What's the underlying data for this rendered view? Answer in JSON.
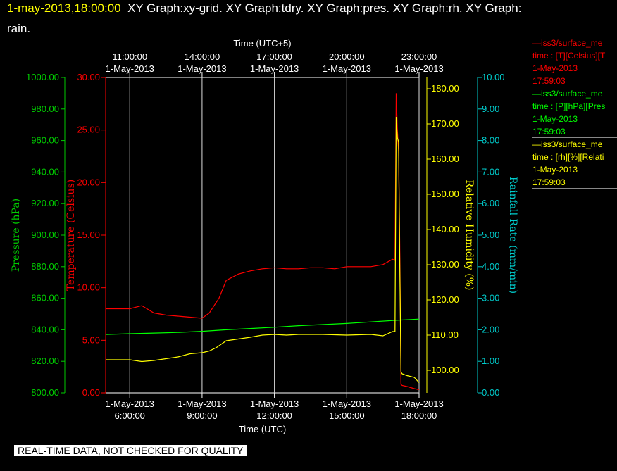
{
  "header": {
    "title_date": "1-may-2013,18:00:00",
    "title_rest": "XY Graph:xy-grid.  XY Graph:tdry.  XY Graph:pres.  XY Graph:rh.  XY Graph:",
    "title_line2": "rain."
  },
  "legend": [
    {
      "line1": "—iss3/surface_me",
      "line2": "time : [T][Celsius][T",
      "line3": "1-May-2013",
      "line4": "17:59:03",
      "color": "#ff0000"
    },
    {
      "line1": "—iss3/surface_me",
      "line2": "time : [P][hPa][Pres",
      "line3": "1-May-2013",
      "line4": "17:59:03",
      "color": "#00ff00"
    },
    {
      "line1": "—iss3/surface_me",
      "line2": "time : [rh][%][Relati",
      "line3": "1-May-2013",
      "line4": "17:59:03",
      "color": "#ffff00"
    }
  ],
  "footer": {
    "qc_label": "REAL-TIME DATA, NOT CHECKED FOR QUALITY"
  },
  "chart_data": {
    "type": "line",
    "x_range_hours": [
      5,
      18
    ],
    "top_axis_label": "Time (UTC+5)",
    "bottom_axis_label": "Time (UTC)",
    "top_ticks": [
      {
        "x": 6,
        "time": "11:00:00",
        "date": "1-May-2013"
      },
      {
        "x": 9,
        "time": "14:00:00",
        "date": "1-May-2013"
      },
      {
        "x": 12,
        "time": "17:00:00",
        "date": "1-May-2013"
      },
      {
        "x": 15,
        "time": "20:00:00",
        "date": "1-May-2013"
      },
      {
        "x": 18,
        "time": "23:00:00",
        "date": "1-May-2013"
      }
    ],
    "bottom_ticks": [
      {
        "x": 6,
        "date": "1-May-2013",
        "time": "6:00:00"
      },
      {
        "x": 9,
        "date": "1-May-2013",
        "time": "9:00:00"
      },
      {
        "x": 12,
        "date": "1-May-2013",
        "time": "12:00:00"
      },
      {
        "x": 15,
        "date": "1-May-2013",
        "time": "15:00:00"
      },
      {
        "x": 18,
        "date": "1-May-2013",
        "time": "18:00:00"
      }
    ],
    "axes": {
      "pressure": {
        "label": "Pressure (hPa)",
        "color": "#00cc00",
        "range": [
          800,
          1000
        ],
        "ticks": [
          "800.00",
          "820.00",
          "840.00",
          "860.00",
          "880.00",
          "900.00",
          "920.00",
          "940.00",
          "960.00",
          "980.00",
          "1000.00"
        ]
      },
      "temperature": {
        "label": "Temperature (Celsius)",
        "color": "#ff0000",
        "range": [
          0,
          30
        ],
        "ticks": [
          "0.00",
          "5.00",
          "10.00",
          "15.00",
          "20.00",
          "25.00",
          "30.00"
        ]
      },
      "rh": {
        "label": "Relative Humidity (%)",
        "color": "#ffff00",
        "range": [
          93.6,
          183.2
        ],
        "ticks": [
          "100.00",
          "110.00",
          "120.00",
          "130.00",
          "140.00",
          "150.00",
          "160.00",
          "170.00",
          "180.00"
        ]
      },
      "rain": {
        "label": "Rainfall Rate (mm/min)",
        "color": "#00cccc",
        "range": [
          0,
          10
        ],
        "ticks": [
          "0.00",
          "1.00",
          "2.00",
          "3.00",
          "4.00",
          "5.00",
          "6.00",
          "7.00",
          "8.00",
          "9.00",
          "10.00"
        ]
      }
    },
    "series": [
      {
        "name": "T",
        "axis": "temperature",
        "color": "#ff0000",
        "x": [
          5,
          6,
          6.5,
          7,
          7.5,
          8,
          8.5,
          9,
          9.3,
          9.7,
          10,
          10.5,
          11,
          11.5,
          12,
          12.5,
          13,
          13.5,
          14,
          14.5,
          15,
          15.5,
          16,
          16.5,
          16.9,
          17.0,
          17.05,
          17.1,
          17.15,
          17.2,
          17.25,
          17.3,
          17.5,
          17.8,
          18
        ],
        "y": [
          8.0,
          8.0,
          8.3,
          7.6,
          7.4,
          7.3,
          7.2,
          7.1,
          7.6,
          9.0,
          10.7,
          11.3,
          11.6,
          11.8,
          11.9,
          11.8,
          11.8,
          11.9,
          11.9,
          11.8,
          12.0,
          12.0,
          12.0,
          12.2,
          12.7,
          12.6,
          28.5,
          25.0,
          23.0,
          14.0,
          0.8,
          0.7,
          0.6,
          0.4,
          0.3
        ]
      },
      {
        "name": "P",
        "axis": "pressure",
        "color": "#00ff00",
        "x": [
          5,
          6,
          7,
          8,
          9,
          10,
          11,
          12,
          13,
          14,
          15,
          16,
          17,
          18
        ],
        "y": [
          837.0,
          837.5,
          837.9,
          838.3,
          839.0,
          840.0,
          840.8,
          841.6,
          842.6,
          843.3,
          844.0,
          845.0,
          846.0,
          846.8
        ]
      },
      {
        "name": "rh",
        "axis": "rh",
        "color": "#ffff00",
        "x": [
          5,
          6,
          6.5,
          7,
          8,
          8.5,
          9,
          9.3,
          9.6,
          10,
          10.5,
          11,
          11.5,
          12,
          12.5,
          13,
          14,
          15,
          16,
          16.5,
          16.9,
          17.0,
          17.05,
          17.1,
          17.15,
          17.2,
          17.25,
          17.3,
          17.5,
          17.8,
          18
        ],
        "y": [
          103.0,
          103.0,
          102.5,
          102.8,
          103.8,
          104.7,
          105.0,
          105.5,
          106.5,
          108.4,
          108.9,
          109.4,
          110.0,
          110.2,
          110.0,
          110.2,
          110.2,
          110.0,
          110.2,
          109.8,
          111.0,
          111.0,
          172.0,
          166.0,
          165.0,
          130.0,
          99.5,
          99.0,
          98.5,
          98.0,
          96.5
        ]
      }
    ]
  }
}
